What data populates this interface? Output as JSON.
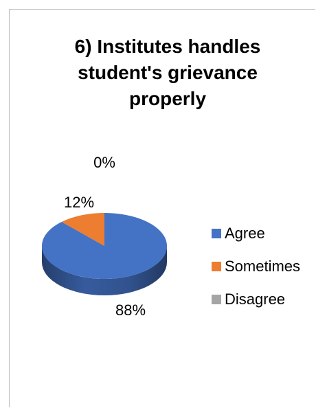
{
  "chart_data": {
    "type": "pie",
    "style": "3d",
    "title": "6) Institutes handles student's grievance properly",
    "title_lines": [
      "6) Institutes handles",
      "student's grievance",
      "properly"
    ],
    "categories": [
      "Agree",
      "Sometimes",
      "Disagree"
    ],
    "values": [
      88,
      12,
      0
    ],
    "data_labels": [
      "88%",
      "12%",
      "0%"
    ],
    "colors": [
      "#4472c4",
      "#ed7d31",
      "#a5a5a5"
    ],
    "legend_position": "right",
    "start_angle_deg": 0,
    "direction": "clockwise"
  }
}
